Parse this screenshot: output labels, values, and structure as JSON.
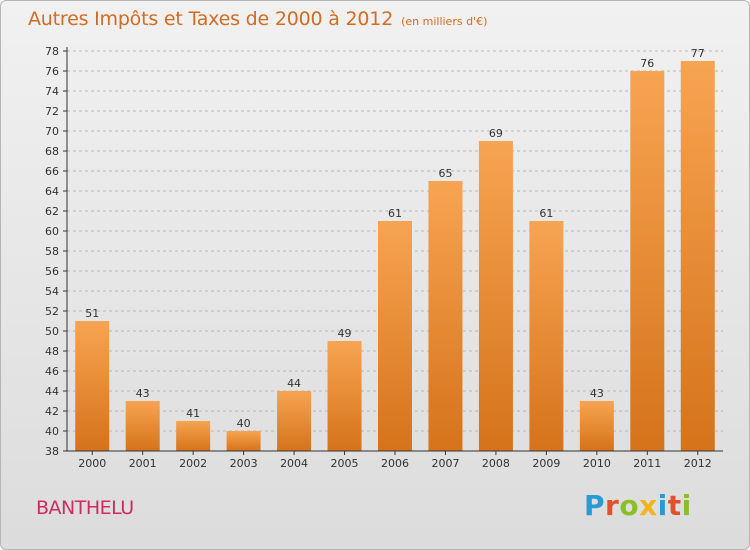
{
  "header": {
    "title": "Autres Impôts et Taxes de 2000 à 2012",
    "subtitle": "(en milliers d'€)"
  },
  "footer": {
    "place": "BANTHELU",
    "logo_letters": [
      "P",
      "r",
      "o",
      "x",
      "i",
      "t",
      "i"
    ],
    "logo_colors": [
      "#2a9ad6",
      "#e0522b",
      "#8bbf2a",
      "#f3b41b",
      "#2a9ad6",
      "#e0522b",
      "#8bbf2a"
    ]
  },
  "colors": {
    "title": "#d36b22",
    "place": "#cc2c61",
    "bar_light": "#f7a452",
    "bar_dark": "#d5731a",
    "axis": "#333333",
    "grid": "#b8b8b8"
  },
  "chart_data": {
    "type": "bar",
    "title": "Autres Impôts et Taxes de 2000 à 2012",
    "subtitle": "(en milliers d'€)",
    "categories": [
      "2000",
      "2001",
      "2002",
      "2003",
      "2004",
      "2005",
      "2006",
      "2007",
      "2008",
      "2009",
      "2010",
      "2011",
      "2012"
    ],
    "values": [
      51,
      43,
      41,
      40,
      44,
      49,
      61,
      65,
      69,
      61,
      43,
      76,
      77
    ],
    "ylim": [
      38,
      78
    ],
    "ytick_step": 2,
    "grid": true,
    "data_labels": true
  }
}
